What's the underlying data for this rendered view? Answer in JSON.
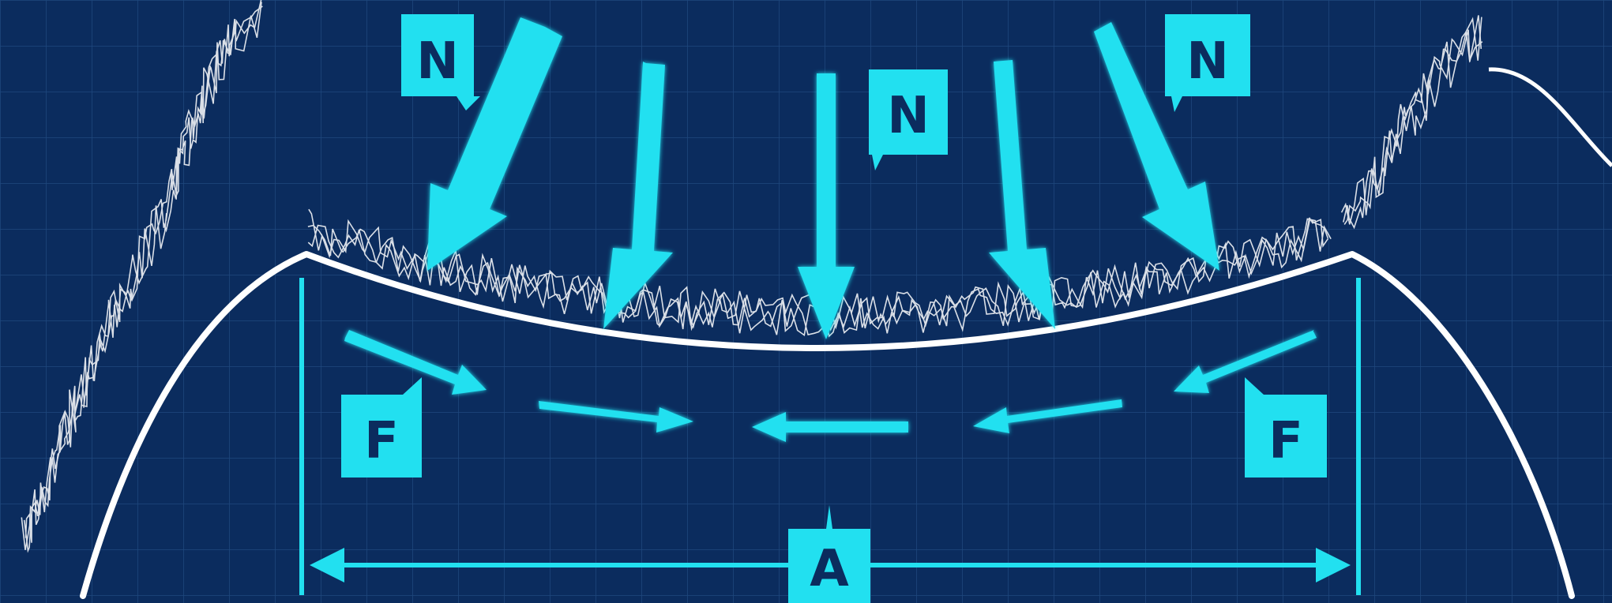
{
  "labels": {
    "normal_force": "N",
    "friction": "F",
    "area": "A"
  },
  "colors": {
    "background": "#0b2c5e",
    "grid": "#2b5a93",
    "accent": "#22e0f0",
    "outline": "#ffffff"
  },
  "icons": [
    "normal-force-arrow",
    "friction-arrow",
    "dimension-arrow",
    "label-tag"
  ]
}
